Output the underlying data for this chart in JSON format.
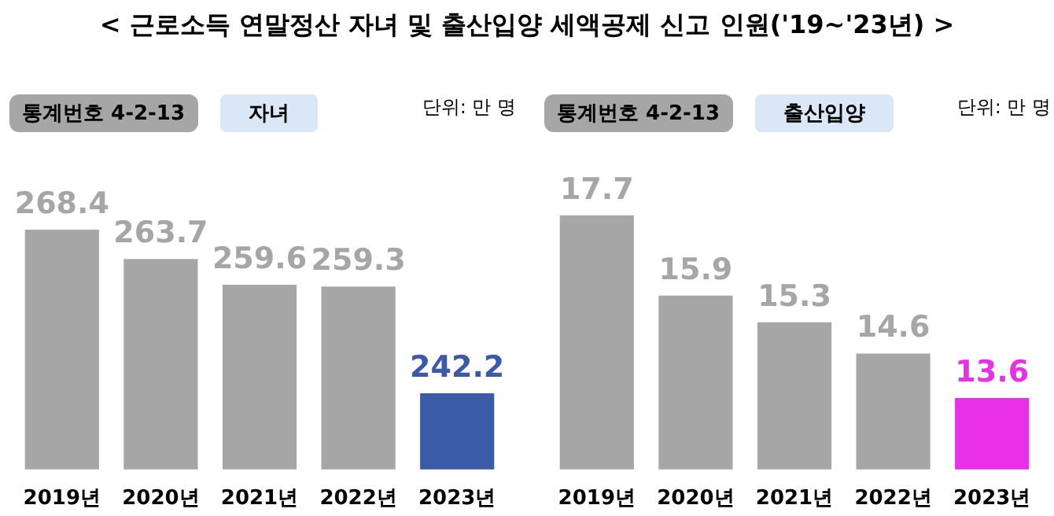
{
  "chart_data": [
    {
      "type": "bar",
      "title": "< 근로소득 연말정산 자녀 및 출산입양 세액공제 신고 인원('19~'23년) >",
      "subtitle": "자녀",
      "annotations": [
        "통계번호 4-2-13",
        "단위: 만 명"
      ],
      "categories": [
        "2019년",
        "2020년",
        "2021년",
        "2022년",
        "2023년"
      ],
      "values": [
        268.4,
        263.7,
        259.6,
        259.3,
        242.2
      ],
      "colors": [
        "#a6a6a6",
        "#a6a6a6",
        "#a6a6a6",
        "#a6a6a6",
        "#3b5ba8"
      ],
      "data_labels": true,
      "tick_labels": "x"
    },
    {
      "type": "bar",
      "subtitle": "출산입양",
      "annotations": [
        "통계번호 4-2-13",
        "단위: 만 명"
      ],
      "categories": [
        "2019년",
        "2020년",
        "2021년",
        "2022년",
        "2023년"
      ],
      "values": [
        17.7,
        15.9,
        15.3,
        14.6,
        13.6
      ],
      "colors": [
        "#a6a6a6",
        "#a6a6a6",
        "#a6a6a6",
        "#a6a6a6",
        "#e830e8"
      ],
      "data_labels": true,
      "tick_labels": "x"
    }
  ]
}
